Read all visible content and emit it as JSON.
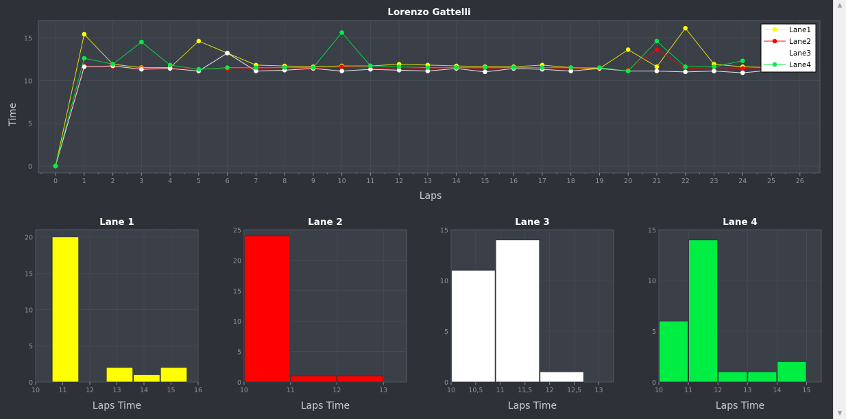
{
  "colors": {
    "background": "#2e3238",
    "plot_bg": "#3a3f48",
    "grid": "#4a505a",
    "axis_text": "#8f949c",
    "title": "#ffffff",
    "label": "#c8ccd2"
  },
  "chart_data": [
    {
      "type": "line",
      "title": "Lorenzo Gattelli",
      "xlabel": "Laps",
      "ylabel": "Time",
      "xlim": [
        -0.6,
        26.7
      ],
      "ylim": [
        -0.8,
        17.0
      ],
      "xticks": [
        0,
        1,
        2,
        3,
        4,
        5,
        6,
        7,
        8,
        9,
        10,
        11,
        12,
        13,
        14,
        15,
        16,
        17,
        18,
        19,
        20,
        21,
        22,
        23,
        24,
        25,
        26
      ],
      "yticks": [
        0,
        5,
        10,
        15
      ],
      "grid": true,
      "legend_position": "top-right",
      "series": [
        {
          "name": "Lane1",
          "color": "#ffff00",
          "x": [
            0,
            1,
            2,
            3,
            4,
            5,
            6,
            7,
            8,
            9,
            10,
            11,
            12,
            13,
            14,
            15,
            16,
            17,
            18,
            19,
            20,
            21,
            22,
            23,
            24,
            25
          ],
          "y": [
            0,
            15.4,
            11.9,
            11.5,
            11.5,
            14.6,
            13.2,
            11.8,
            11.7,
            11.6,
            11.7,
            11.7,
            11.9,
            11.8,
            11.7,
            11.6,
            11.6,
            11.8,
            11.5,
            11.4,
            13.6,
            11.6,
            16.1,
            11.9,
            11.6,
            11.5
          ]
        },
        {
          "name": "Lane2",
          "color": "#ff0000",
          "x": [
            0,
            1,
            2,
            3,
            4,
            5,
            6,
            7,
            8,
            9,
            10,
            11,
            12,
            13,
            14,
            15,
            16,
            17,
            18,
            19,
            20,
            21,
            22,
            23,
            24,
            25
          ],
          "y": [
            0,
            11.7,
            11.6,
            11.4,
            11.4,
            11.3,
            11.3,
            11.4,
            11.5,
            11.4,
            11.6,
            11.5,
            11.3,
            11.4,
            11.5,
            11.4,
            11.5,
            11.5,
            11.4,
            11.3,
            11.2,
            13.6,
            11.4,
            11.5,
            11.4,
            11.3
          ]
        },
        {
          "name": "Lane3",
          "color": "#ffffff",
          "x": [
            0,
            1,
            2,
            3,
            4,
            5,
            6,
            7,
            8,
            9,
            10,
            11,
            12,
            13,
            14,
            15,
            16,
            17,
            18,
            19,
            20,
            21,
            22,
            23,
            24,
            25
          ],
          "y": [
            0,
            11.6,
            11.7,
            11.3,
            11.4,
            11.1,
            13.2,
            11.1,
            11.2,
            11.4,
            11.1,
            11.3,
            11.2,
            11.1,
            11.4,
            11.0,
            11.4,
            11.3,
            11.1,
            11.4,
            11.1,
            11.1,
            11.0,
            11.1,
            10.9,
            11.2
          ]
        },
        {
          "name": "Lane4",
          "color": "#00ee44",
          "x": [
            0,
            1,
            2,
            3,
            4,
            5,
            6,
            7,
            8,
            9,
            10,
            11,
            12,
            13,
            14,
            15,
            16,
            17,
            18,
            19,
            20,
            21,
            22,
            23,
            24
          ],
          "y": [
            0,
            12.6,
            11.9,
            14.5,
            11.8,
            11.3,
            11.5,
            11.5,
            11.5,
            11.5,
            15.6,
            11.7,
            11.6,
            11.5,
            11.5,
            11.5,
            11.5,
            11.5,
            11.5,
            11.5,
            11.1,
            14.6,
            11.6,
            11.6,
            12.3
          ]
        }
      ]
    },
    {
      "type": "bar",
      "title": "Lane 1",
      "xlabel": "Laps Time",
      "ylabel": "",
      "color": "#ffff00",
      "xlim": [
        10,
        16
      ],
      "ylim": [
        0,
        21
      ],
      "xticks": [
        "10",
        "11",
        "12",
        "13",
        "14",
        "15",
        "16"
      ],
      "xtick_values": [
        10,
        11,
        12,
        13,
        14,
        15,
        16
      ],
      "yticks": [
        0,
        5,
        10,
        15,
        20
      ],
      "bars": [
        {
          "x0": 10.6,
          "x1": 11.6,
          "value": 20
        },
        {
          "x0": 12.6,
          "x1": 13.6,
          "value": 2
        },
        {
          "x0": 13.6,
          "x1": 14.6,
          "value": 1
        },
        {
          "x0": 14.6,
          "x1": 15.6,
          "value": 2
        }
      ]
    },
    {
      "type": "bar",
      "title": "Lane 2",
      "xlabel": "Laps Time",
      "ylabel": "",
      "color": "#ff0000",
      "xlim": [
        10,
        13.5
      ],
      "ylim": [
        0,
        25
      ],
      "xticks": [
        "10",
        "11",
        "12",
        "13"
      ],
      "xtick_values": [
        10,
        11,
        12,
        13
      ],
      "yticks": [
        0,
        5,
        10,
        15,
        20,
        25
      ],
      "bars": [
        {
          "x0": 10,
          "x1": 11,
          "value": 24
        },
        {
          "x0": 11,
          "x1": 12,
          "value": 1
        },
        {
          "x0": 12,
          "x1": 13,
          "value": 1
        }
      ]
    },
    {
      "type": "bar",
      "title": "Lane 3",
      "xlabel": "Laps Time",
      "ylabel": "",
      "color": "#ffffff",
      "xlim": [
        10,
        13.3
      ],
      "ylim": [
        0,
        15
      ],
      "xticks": [
        "10",
        "10,5",
        "11",
        "11,5",
        "12",
        "12,5",
        "13"
      ],
      "xtick_values": [
        10,
        10.5,
        11,
        11.5,
        12,
        12.5,
        13
      ],
      "yticks": [
        0,
        5,
        10,
        15
      ],
      "bars": [
        {
          "x0": 10,
          "x1": 10.9,
          "value": 11
        },
        {
          "x0": 10.9,
          "x1": 11.8,
          "value": 14
        },
        {
          "x0": 11.8,
          "x1": 12.7,
          "value": 1
        }
      ]
    },
    {
      "type": "bar",
      "title": "Lane 4",
      "xlabel": "Laps Time",
      "ylabel": "",
      "color": "#00ee44",
      "xlim": [
        10,
        15.5
      ],
      "ylim": [
        0,
        15
      ],
      "xticks": [
        "10",
        "11",
        "12",
        "13",
        "14",
        "15"
      ],
      "xtick_values": [
        10,
        11,
        12,
        13,
        14,
        15
      ],
      "yticks": [
        0,
        5,
        10,
        15
      ],
      "bars": [
        {
          "x0": 10,
          "x1": 11,
          "value": 6
        },
        {
          "x0": 11,
          "x1": 12,
          "value": 14
        },
        {
          "x0": 12,
          "x1": 13,
          "value": 1
        },
        {
          "x0": 13,
          "x1": 14,
          "value": 1
        },
        {
          "x0": 14,
          "x1": 15,
          "value": 2
        }
      ]
    }
  ]
}
